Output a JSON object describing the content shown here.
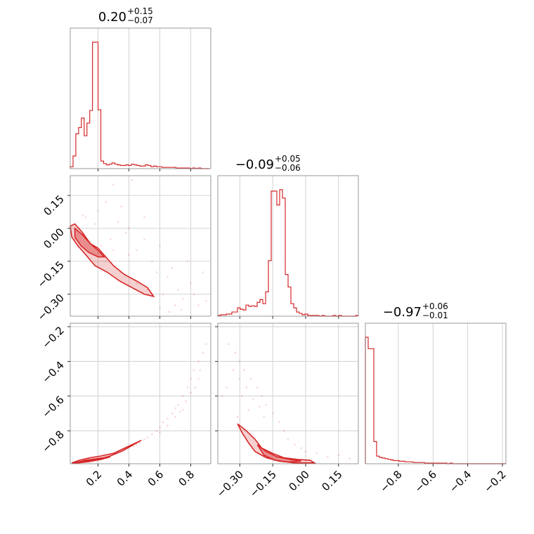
{
  "chart_data": {
    "type": "corner",
    "color": "#d62728",
    "parameters": [
      {
        "title_main": "0.20",
        "title_plus": "+0.15",
        "title_minus": "−0.07",
        "range": [
          0.02,
          0.93
        ],
        "ticks": [
          0.2,
          0.4,
          0.6,
          0.8
        ],
        "tick_labels": [
          "0.2",
          "0.4",
          "0.6",
          "0.8"
        ]
      },
      {
        "title_main": "−0.09",
        "title_plus": "+0.05",
        "title_minus": "−0.06",
        "range": [
          -0.4,
          0.24
        ],
        "ticks": [
          -0.3,
          -0.15,
          0.0,
          0.15
        ],
        "tick_labels": [
          "−0.30",
          "−0.15",
          "0.00",
          "0.15"
        ]
      },
      {
        "title_main": "−0.97",
        "title_plus": "+0.06",
        "title_minus": "−0.01",
        "range": [
          -0.99,
          -0.18
        ],
        "ticks": [
          -0.8,
          -0.6,
          -0.4,
          -0.2
        ],
        "tick_labels": [
          "−0.8",
          "−0.6",
          "−0.4",
          "−0.2"
        ]
      }
    ],
    "histograms": [
      {
        "param": 0,
        "edges_start": 0.02,
        "bin_width": 0.018,
        "counts": [
          3,
          20,
          55,
          65,
          80,
          52,
          72,
          92,
          200,
          200,
          93,
          12,
          8,
          6,
          7,
          9,
          7,
          6,
          5,
          5,
          6,
          5,
          7,
          6,
          5,
          4,
          4,
          6,
          5,
          3,
          4,
          3,
          3,
          2,
          2,
          2,
          2,
          2,
          1,
          1,
          1,
          1,
          1,
          0,
          1,
          0,
          1,
          0,
          0,
          0
        ]
      },
      {
        "param": 1,
        "edges_start": -0.4,
        "bin_width": 0.0128,
        "counts": [
          1,
          2,
          2,
          3,
          3,
          6,
          6,
          12,
          10,
          9,
          16,
          14,
          15,
          14,
          20,
          24,
          18,
          35,
          80,
          180,
          180,
          160,
          182,
          170,
          60,
          42,
          18,
          12,
          6,
          4,
          2,
          3,
          1,
          1,
          1,
          1,
          0,
          1,
          0,
          0,
          0,
          1,
          0,
          1,
          0,
          0,
          0,
          0,
          0,
          1
        ]
      },
      {
        "param": 2,
        "edges_start": -0.99,
        "bin_width": 0.0162,
        "counts": [
          200,
          182,
          182,
          35,
          12,
          10,
          9,
          8,
          7,
          6,
          5,
          5,
          4,
          4,
          3,
          3,
          3,
          2,
          2,
          2,
          2,
          1,
          1,
          1,
          1,
          1,
          1,
          1,
          1,
          0,
          1,
          0,
          0,
          0,
          0,
          0,
          0,
          0,
          0,
          0,
          0,
          0,
          0,
          0,
          0,
          0,
          0,
          0,
          0,
          0
        ]
      }
    ],
    "pairs": [
      {
        "x": 0,
        "y": 1,
        "scatter": [
          [
            0.05,
            0.02
          ],
          [
            0.08,
            0.0
          ],
          [
            0.1,
            -0.03
          ],
          [
            0.12,
            0.05
          ],
          [
            0.15,
            -0.06
          ],
          [
            0.2,
            0.08
          ],
          [
            0.25,
            0.12
          ],
          [
            0.3,
            0.2
          ],
          [
            0.35,
            0.1
          ],
          [
            0.4,
            0.0
          ],
          [
            0.42,
            0.22
          ],
          [
            0.45,
            -0.1
          ],
          [
            0.5,
            -0.05
          ],
          [
            0.5,
            0.05
          ],
          [
            0.55,
            -0.15
          ],
          [
            0.58,
            -0.2
          ],
          [
            0.6,
            -0.08
          ],
          [
            0.62,
            -0.3
          ],
          [
            0.65,
            -0.22
          ],
          [
            0.68,
            -0.18
          ],
          [
            0.7,
            -0.35
          ],
          [
            0.72,
            -0.28
          ],
          [
            0.75,
            -0.32
          ],
          [
            0.78,
            -0.15
          ],
          [
            0.8,
            -0.25
          ],
          [
            0.82,
            -0.3
          ],
          [
            0.85,
            -0.35
          ],
          [
            0.88,
            -0.2
          ],
          [
            0.9,
            -0.33
          ],
          [
            0.3,
            -0.1
          ],
          [
            0.35,
            -0.2
          ],
          [
            0.4,
            -0.12
          ],
          [
            0.45,
            -0.25
          ],
          [
            0.52,
            -0.28
          ],
          [
            0.25,
            -0.15
          ],
          [
            0.18,
            0.02
          ],
          [
            0.22,
            -0.08
          ],
          [
            0.28,
            -0.05
          ],
          [
            0.33,
            0.03
          ],
          [
            0.38,
            -0.02
          ],
          [
            0.6,
            -0.36
          ],
          [
            0.66,
            -0.38
          ],
          [
            0.74,
            -0.37
          ],
          [
            0.05,
            -0.05
          ],
          [
            0.1,
            0.06
          ]
        ],
        "contour_outer": [
          [
            0.02,
            0.01
          ],
          [
            0.05,
            0.02
          ],
          [
            0.1,
            -0.02
          ],
          [
            0.15,
            -0.07
          ],
          [
            0.2,
            -0.09
          ],
          [
            0.25,
            -0.13
          ],
          [
            0.3,
            -0.17
          ],
          [
            0.37,
            -0.21
          ],
          [
            0.45,
            -0.24
          ],
          [
            0.52,
            -0.27
          ],
          [
            0.56,
            -0.31
          ],
          [
            0.5,
            -0.3
          ],
          [
            0.42,
            -0.27
          ],
          [
            0.34,
            -0.24
          ],
          [
            0.26,
            -0.2
          ],
          [
            0.18,
            -0.17
          ],
          [
            0.12,
            -0.12
          ],
          [
            0.07,
            -0.08
          ],
          [
            0.03,
            -0.04
          ]
        ],
        "contour_inner": [
          [
            0.05,
            0.0
          ],
          [
            0.1,
            -0.03
          ],
          [
            0.15,
            -0.07
          ],
          [
            0.2,
            -0.1
          ],
          [
            0.24,
            -0.13
          ],
          [
            0.2,
            -0.13
          ],
          [
            0.14,
            -0.11
          ],
          [
            0.09,
            -0.08
          ],
          [
            0.05,
            -0.04
          ]
        ]
      },
      {
        "x": 0,
        "y": 2,
        "scatter": [
          [
            0.9,
            -0.3
          ],
          [
            0.88,
            -0.35
          ],
          [
            0.85,
            -0.4
          ],
          [
            0.82,
            -0.45
          ],
          [
            0.8,
            -0.5
          ],
          [
            0.78,
            -0.55
          ],
          [
            0.75,
            -0.6
          ],
          [
            0.72,
            -0.65
          ],
          [
            0.7,
            -0.67
          ],
          [
            0.68,
            -0.7
          ],
          [
            0.65,
            -0.73
          ],
          [
            0.62,
            -0.75
          ],
          [
            0.6,
            -0.78
          ],
          [
            0.58,
            -0.8
          ],
          [
            0.55,
            -0.82
          ],
          [
            0.52,
            -0.84
          ],
          [
            0.5,
            -0.85
          ],
          [
            0.47,
            -0.87
          ],
          [
            0.45,
            -0.88
          ],
          [
            0.43,
            -0.89
          ],
          [
            0.85,
            -0.5
          ],
          [
            0.8,
            -0.58
          ],
          [
            0.75,
            -0.68
          ],
          [
            0.7,
            -0.72
          ],
          [
            0.65,
            -0.77
          ],
          [
            0.6,
            -0.81
          ],
          [
            0.86,
            -0.45
          ],
          [
            0.83,
            -0.55
          ],
          [
            0.77,
            -0.63
          ],
          [
            0.73,
            -0.69
          ]
        ],
        "contour_outer": [
          [
            0.03,
            -0.985
          ],
          [
            0.08,
            -0.97
          ],
          [
            0.15,
            -0.955
          ],
          [
            0.22,
            -0.945
          ],
          [
            0.3,
            -0.93
          ],
          [
            0.36,
            -0.905
          ],
          [
            0.42,
            -0.88
          ],
          [
            0.48,
            -0.855
          ],
          [
            0.44,
            -0.875
          ],
          [
            0.36,
            -0.915
          ],
          [
            0.28,
            -0.945
          ],
          [
            0.2,
            -0.965
          ],
          [
            0.12,
            -0.975
          ],
          [
            0.06,
            -0.985
          ]
        ],
        "contour_inner": [
          [
            0.05,
            -0.985
          ],
          [
            0.12,
            -0.97
          ],
          [
            0.2,
            -0.96
          ],
          [
            0.28,
            -0.95
          ],
          [
            0.22,
            -0.965
          ],
          [
            0.14,
            -0.978
          ],
          [
            0.07,
            -0.985
          ]
        ]
      },
      {
        "x": 1,
        "y": 2,
        "scatter": [
          [
            -0.35,
            -0.3
          ],
          [
            -0.32,
            -0.35
          ],
          [
            -0.3,
            -0.4
          ],
          [
            -0.28,
            -0.45
          ],
          [
            -0.25,
            -0.5
          ],
          [
            -0.22,
            -0.55
          ],
          [
            -0.2,
            -0.6
          ],
          [
            -0.18,
            -0.65
          ],
          [
            -0.15,
            -0.7
          ],
          [
            -0.12,
            -0.75
          ],
          [
            -0.1,
            -0.8
          ],
          [
            -0.08,
            -0.85
          ],
          [
            -0.05,
            -0.88
          ],
          [
            -0.02,
            -0.9
          ],
          [
            0.0,
            -0.92
          ],
          [
            -0.3,
            -0.5
          ],
          [
            -0.27,
            -0.55
          ],
          [
            -0.24,
            -0.62
          ],
          [
            -0.21,
            -0.66
          ],
          [
            -0.19,
            -0.72
          ],
          [
            -0.33,
            -0.45
          ],
          [
            -0.29,
            -0.6
          ],
          [
            -0.26,
            -0.68
          ],
          [
            -0.36,
            -0.55
          ],
          [
            0.05,
            -0.93
          ],
          [
            0.1,
            -0.95
          ],
          [
            0.15,
            -0.94
          ],
          [
            0.2,
            -0.96
          ],
          [
            -0.38,
            -0.6
          ],
          [
            -0.31,
            -0.72
          ]
        ],
        "contour_outer": [
          [
            -0.31,
            -0.76
          ],
          [
            -0.27,
            -0.8
          ],
          [
            -0.23,
            -0.85
          ],
          [
            -0.2,
            -0.9
          ],
          [
            -0.15,
            -0.93
          ],
          [
            -0.1,
            -0.955
          ],
          [
            -0.04,
            -0.965
          ],
          [
            0.02,
            -0.97
          ],
          [
            0.04,
            -0.985
          ],
          [
            -0.05,
            -0.985
          ],
          [
            -0.12,
            -0.975
          ],
          [
            -0.18,
            -0.955
          ],
          [
            -0.23,
            -0.92
          ],
          [
            -0.26,
            -0.87
          ],
          [
            -0.29,
            -0.81
          ]
        ],
        "contour_inner": [
          [
            -0.22,
            -0.88
          ],
          [
            -0.18,
            -0.92
          ],
          [
            -0.13,
            -0.95
          ],
          [
            -0.07,
            -0.965
          ],
          [
            -0.02,
            -0.975
          ],
          [
            -0.08,
            -0.98
          ],
          [
            -0.14,
            -0.97
          ],
          [
            -0.19,
            -0.94
          ]
        ]
      }
    ],
    "grid": true
  }
}
